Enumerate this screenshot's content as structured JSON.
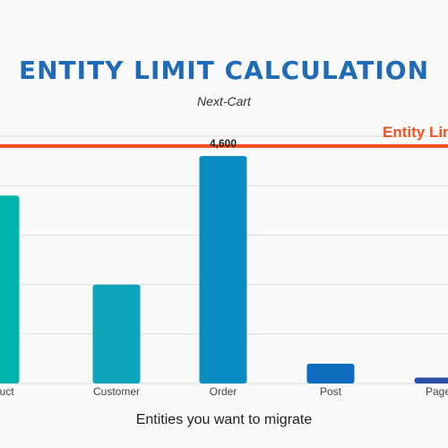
{
  "chart_data": {
    "type": "bar",
    "title": "ENTITY LIMIT CALCULATION",
    "subtitle": "Next-Cart",
    "xlabel": "Entities you want to migrate",
    "ylabel": "",
    "categories": [
      "Product",
      "Customer",
      "Order",
      "Post",
      "Page"
    ],
    "values": [
      3800,
      2000,
      4600,
      400,
      120
    ],
    "data_labels": [
      "",
      "",
      "4,600",
      "",
      ""
    ],
    "colors": [
      "#00b3ad",
      "#10a4ba",
      "#0a8cc2",
      "#0e6cbf",
      "#2c4fa8"
    ],
    "ylim": [
      0,
      5000
    ],
    "grid": true,
    "limit": {
      "label": "Entity Limit",
      "value": 4800,
      "color": "#f4511e"
    }
  }
}
